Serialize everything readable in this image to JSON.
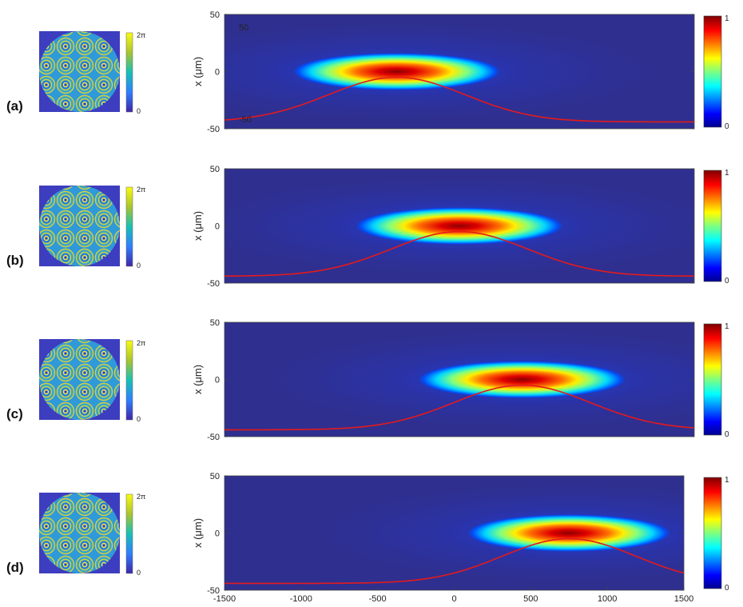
{
  "colors": {
    "background_low": "#2f2f8f",
    "curve": "#e41a1c",
    "phase_low": "#3d3dbf",
    "phase_high": "#f5e63a"
  },
  "chart_data": [
    {
      "type": "heatmap",
      "panel_label": "(a)",
      "phase_colorbar_ticks": [
        "2π",
        "0"
      ],
      "intensity_colorbar_ticks": [
        "1",
        "0"
      ],
      "ylabel": "x (μm)",
      "xlim": [
        -1500,
        1500
      ],
      "ylim": [
        -50,
        50
      ],
      "yticks": [
        "50",
        "0",
        "-50"
      ],
      "xticks": [],
      "annotations": [
        "50",
        "-50"
      ],
      "beam": {
        "center_x": -400,
        "center_y": 0,
        "half_length": 650,
        "half_width": 6
      },
      "curve": {
        "peak_x": -400,
        "peak_y": -5,
        "edge_y": -44
      }
    },
    {
      "type": "heatmap",
      "panel_label": "(b)",
      "phase_colorbar_ticks": [
        "2π",
        "0"
      ],
      "intensity_colorbar_ticks": [
        "1",
        "0"
      ],
      "ylabel": "x (μm)",
      "xlim": [
        -1500,
        1500
      ],
      "ylim": [
        -50,
        50
      ],
      "yticks": [
        "50",
        "0",
        "-50"
      ],
      "xticks": [],
      "annotations": [],
      "beam": {
        "center_x": 0,
        "center_y": 0,
        "half_length": 650,
        "half_width": 6
      },
      "curve": {
        "peak_x": 0,
        "peak_y": -5,
        "edge_y": -44
      }
    },
    {
      "type": "heatmap",
      "panel_label": "(c)",
      "phase_colorbar_ticks": [
        "2π",
        "0"
      ],
      "intensity_colorbar_ticks": [
        "1",
        "0"
      ],
      "ylabel": "x (μm)",
      "xlim": [
        -1500,
        1500
      ],
      "ylim": [
        -50,
        50
      ],
      "yticks": [
        "50",
        "0",
        "-50"
      ],
      "xticks": [],
      "annotations": [],
      "beam": {
        "center_x": 400,
        "center_y": 0,
        "half_length": 650,
        "half_width": 6
      },
      "curve": {
        "peak_x": 400,
        "peak_y": -5,
        "edge_y": -44
      }
    },
    {
      "type": "heatmap",
      "panel_label": "(d)",
      "phase_colorbar_ticks": [
        "2π",
        "0"
      ],
      "intensity_colorbar_ticks": [
        "1",
        "0"
      ],
      "ylabel": "x (μm)",
      "xlim": [
        -1500,
        1500
      ],
      "ylim": [
        -50,
        50
      ],
      "yticks": [
        "50",
        "0",
        "-50"
      ],
      "xticks": [
        "-1500",
        "-1000",
        "-500",
        "0",
        "500",
        "1000",
        "1500"
      ],
      "annotations": [],
      "beam": {
        "center_x": 750,
        "center_y": 0,
        "half_length": 650,
        "half_width": 6
      },
      "curve": {
        "peak_x": 750,
        "peak_y": -5,
        "edge_y": -44
      }
    }
  ]
}
